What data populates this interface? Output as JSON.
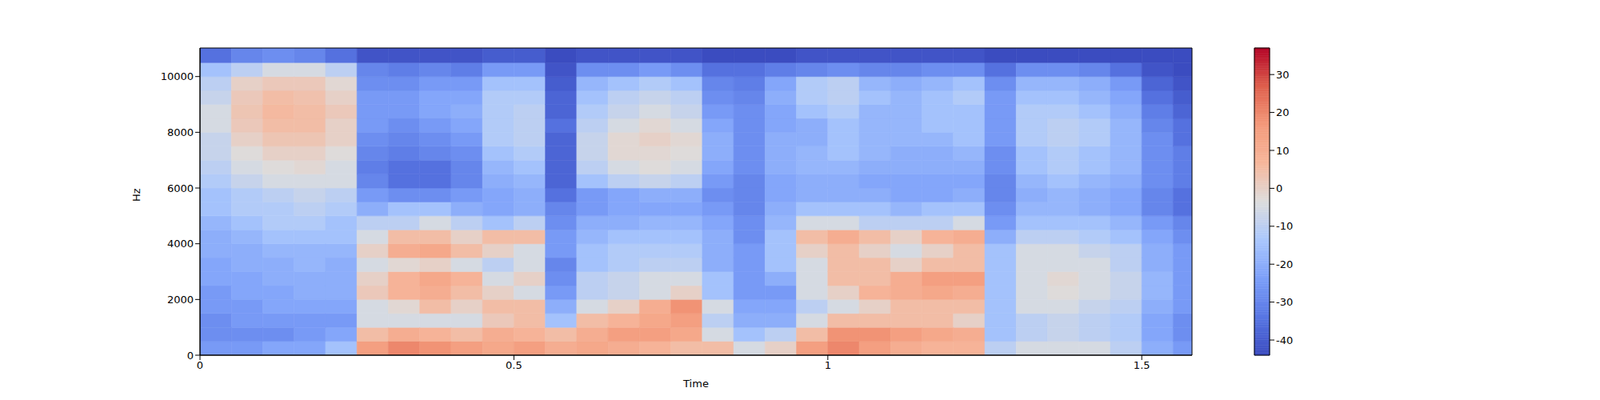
{
  "chart_data": {
    "type": "heatmap",
    "xlabel": "Time",
    "ylabel": "Hz",
    "xlim": [
      0,
      1.58
    ],
    "xticks": [
      0,
      0.5,
      1,
      1.5
    ],
    "ylim": [
      0,
      11025
    ],
    "yticks": [
      0,
      2000,
      4000,
      6000,
      8000,
      10000
    ],
    "x": [
      0,
      0.05,
      0.1,
      0.15,
      0.2,
      0.25,
      0.3,
      0.35,
      0.4,
      0.45,
      0.5,
      0.55,
      0.6,
      0.65,
      0.7,
      0.75,
      0.8,
      0.85,
      0.9,
      0.95,
      1.0,
      1.05,
      1.1,
      1.15,
      1.2,
      1.25,
      1.3,
      1.35,
      1.4,
      1.45,
      1.5,
      1.55,
      1.58
    ],
    "y": [
      0,
      500,
      1000,
      1500,
      2000,
      2500,
      3000,
      3500,
      4000,
      4500,
      5000,
      5500,
      6000,
      6500,
      7000,
      7500,
      8000,
      8500,
      9000,
      9500,
      10000,
      10500,
      11025
    ],
    "cells": [
      [
        -25,
        -28,
        -28,
        -25,
        -25,
        -22,
        -22,
        -20,
        -20,
        -18,
        -15,
        -15,
        -12,
        -10,
        -8,
        -8,
        -5,
        -5,
        -8,
        -10,
        -15,
        -35
      ],
      [
        -25,
        -28,
        -25,
        -25,
        -22,
        -22,
        -20,
        -20,
        -18,
        -15,
        -12,
        -12,
        -8,
        -5,
        -3,
        0,
        2,
        3,
        2,
        0,
        -10,
        -30
      ],
      [
        -22,
        -28,
        -25,
        -22,
        -22,
        -20,
        -20,
        -18,
        -15,
        -12,
        -12,
        -10,
        -5,
        -3,
        0,
        3,
        5,
        6,
        5,
        2,
        -5,
        -28
      ],
      [
        -22,
        -25,
        -25,
        -22,
        -20,
        -20,
        -18,
        -18,
        -15,
        -12,
        -10,
        -8,
        -5,
        -2,
        0,
        3,
        5,
        5,
        4,
        2,
        -5,
        -30
      ],
      [
        -15,
        -22,
        -25,
        -22,
        -20,
        -20,
        -20,
        -18,
        -15,
        -15,
        -12,
        -10,
        -5,
        -5,
        -3,
        0,
        0,
        2,
        0,
        -2,
        -10,
        -35
      ],
      [
        15,
        5,
        -5,
        -5,
        2,
        0,
        -5,
        0,
        -5,
        -10,
        -20,
        -25,
        -30,
        -32,
        -30,
        -28,
        -25,
        -25,
        -25,
        -28,
        -30,
        -42
      ],
      [
        20,
        10,
        -5,
        -2,
        8,
        8,
        -2,
        10,
        5,
        -10,
        -15,
        -28,
        -35,
        -35,
        -32,
        -30,
        -28,
        -25,
        -25,
        -28,
        -32,
        -42
      ],
      [
        18,
        8,
        -5,
        5,
        10,
        12,
        0,
        12,
        5,
        -5,
        -15,
        -28,
        -35,
        -35,
        -30,
        -28,
        -25,
        -22,
        -22,
        -25,
        -30,
        -42
      ],
      [
        15,
        5,
        -5,
        0,
        5,
        8,
        -5,
        5,
        0,
        -10,
        -20,
        -25,
        -30,
        -30,
        -28,
        -25,
        -22,
        -20,
        -22,
        -25,
        -32,
        -42
      ],
      [
        12,
        10,
        2,
        5,
        0,
        -5,
        -10,
        0,
        5,
        -15,
        -22,
        -22,
        -20,
        -18,
        -15,
        -12,
        -12,
        -12,
        -12,
        -15,
        -25,
        -40
      ],
      [
        15,
        8,
        5,
        5,
        -5,
        0,
        -5,
        -5,
        5,
        -10,
        -20,
        -20,
        -18,
        -15,
        -12,
        -10,
        -10,
        -10,
        -12,
        -15,
        -25,
        -40
      ],
      [
        10,
        5,
        -15,
        -20,
        -25,
        -28,
        -30,
        -25,
        -25,
        -28,
        -30,
        -35,
        -38,
        -38,
        -38,
        -38,
        -35,
        -38,
        -38,
        -40,
        -42,
        -44
      ],
      [
        12,
        10,
        5,
        -5,
        -10,
        -10,
        -15,
        -15,
        -18,
        -20,
        -25,
        -25,
        -15,
        -10,
        -8,
        -8,
        -10,
        -12,
        -15,
        -18,
        -28,
        -42
      ],
      [
        10,
        15,
        8,
        0,
        -8,
        -8,
        -12,
        -12,
        -15,
        -20,
        -22,
        -22,
        -10,
        -5,
        -2,
        -2,
        -5,
        -8,
        -10,
        -15,
        -28,
        -42
      ],
      [
        8,
        15,
        12,
        10,
        -5,
        -5,
        -10,
        -12,
        -15,
        -18,
        -22,
        -20,
        -8,
        -3,
        -2,
        0,
        -2,
        -5,
        -8,
        -12,
        -25,
        -42
      ],
      [
        5,
        12,
        15,
        18,
        0,
        -5,
        -10,
        -12,
        -15,
        -18,
        -22,
        -20,
        -10,
        -5,
        -3,
        -2,
        -5,
        -8,
        -10,
        -15,
        -28,
        -42
      ],
      [
        5,
        -5,
        -10,
        -5,
        -15,
        -15,
        -20,
        -20,
        -20,
        -22,
        -25,
        -28,
        -25,
        -22,
        -20,
        -20,
        -22,
        -25,
        -28,
        -30,
        -35,
        -44
      ],
      [
        -5,
        -15,
        -20,
        -22,
        -25,
        -25,
        -25,
        -25,
        -28,
        -28,
        -30,
        -30,
        -30,
        -28,
        -28,
        -28,
        -28,
        -28,
        -30,
        -32,
        -35,
        -44
      ],
      [
        0,
        -10,
        -20,
        -22,
        -25,
        -20,
        -15,
        -15,
        -15,
        -18,
        -20,
        -22,
        -22,
        -20,
        -20,
        -20,
        -22,
        -22,
        -20,
        -22,
        -32,
        -44
      ],
      [
        15,
        5,
        -5,
        -10,
        -5,
        -5,
        -5,
        0,
        5,
        -5,
        -15,
        -20,
        -20,
        -18,
        -18,
        -20,
        -20,
        -15,
        -12,
        -12,
        -30,
        -42
      ],
      [
        20,
        18,
        5,
        -5,
        0,
        5,
        5,
        5,
        10,
        -5,
        -15,
        -20,
        -20,
        -18,
        -15,
        -15,
        -15,
        -12,
        -10,
        -10,
        -28,
        -42
      ],
      [
        15,
        18,
        5,
        0,
        8,
        5,
        5,
        0,
        5,
        -10,
        -15,
        -20,
        -22,
        -20,
        -18,
        -18,
        -18,
        -18,
        -15,
        -18,
        -30,
        -42
      ],
      [
        10,
        15,
        5,
        5,
        10,
        10,
        0,
        -5,
        0,
        -10,
        -18,
        -22,
        -22,
        -20,
        -20,
        -18,
        -18,
        -18,
        -18,
        -20,
        -30,
        -42
      ],
      [
        8,
        12,
        5,
        5,
        12,
        15,
        5,
        0,
        8,
        -10,
        -15,
        -22,
        -22,
        -20,
        -20,
        -18,
        -15,
        -15,
        -15,
        -18,
        -28,
        -42
      ],
      [
        8,
        10,
        0,
        5,
        10,
        15,
        5,
        5,
        10,
        -5,
        -15,
        -20,
        -22,
        -20,
        -18,
        -15,
        -15,
        -15,
        -12,
        -15,
        -28,
        -42
      ],
      [
        -10,
        -15,
        -15,
        -15,
        -15,
        -15,
        -15,
        -15,
        -20,
        -25,
        -28,
        -30,
        -30,
        -28,
        -28,
        -25,
        -25,
        -25,
        -25,
        -28,
        -35,
        -44
      ],
      [
        -5,
        -10,
        -10,
        -5,
        -5,
        -5,
        -5,
        -5,
        -10,
        -15,
        -18,
        -20,
        -18,
        -15,
        -15,
        -12,
        -12,
        -12,
        -15,
        -18,
        -28,
        -44
      ],
      [
        -5,
        -8,
        -8,
        -5,
        -3,
        -2,
        -5,
        -5,
        -10,
        -15,
        -18,
        -18,
        -15,
        -12,
        -12,
        -10,
        -10,
        -12,
        -15,
        -18,
        -28,
        -44
      ],
      [
        -5,
        -10,
        -10,
        -8,
        -5,
        -5,
        -5,
        -8,
        -12,
        -15,
        -20,
        -20,
        -18,
        -15,
        -15,
        -12,
        -12,
        -15,
        -18,
        -20,
        -30,
        -44
      ],
      [
        -10,
        -12,
        -12,
        -10,
        -8,
        -8,
        -10,
        -10,
        -15,
        -18,
        -22,
        -22,
        -20,
        -18,
        -18,
        -18,
        -18,
        -20,
        -22,
        -25,
        -35,
        -44
      ],
      [
        -20,
        -22,
        -22,
        -20,
        -18,
        -18,
        -20,
        -20,
        -22,
        -25,
        -30,
        -30,
        -28,
        -28,
        -28,
        -28,
        -30,
        -32,
        -35,
        -38,
        -42,
        -44
      ],
      [
        -25,
        -28,
        -28,
        -25,
        -25,
        -25,
        -25,
        -25,
        -28,
        -30,
        -35,
        -35,
        -32,
        -32,
        -32,
        -35,
        -35,
        -38,
        -40,
        -42,
        -44,
        -44
      ]
    ],
    "colorbar": {
      "range": [
        -44,
        37
      ],
      "ticks": [
        -40,
        -30,
        -20,
        -10,
        0,
        10,
        20,
        30
      ]
    }
  }
}
